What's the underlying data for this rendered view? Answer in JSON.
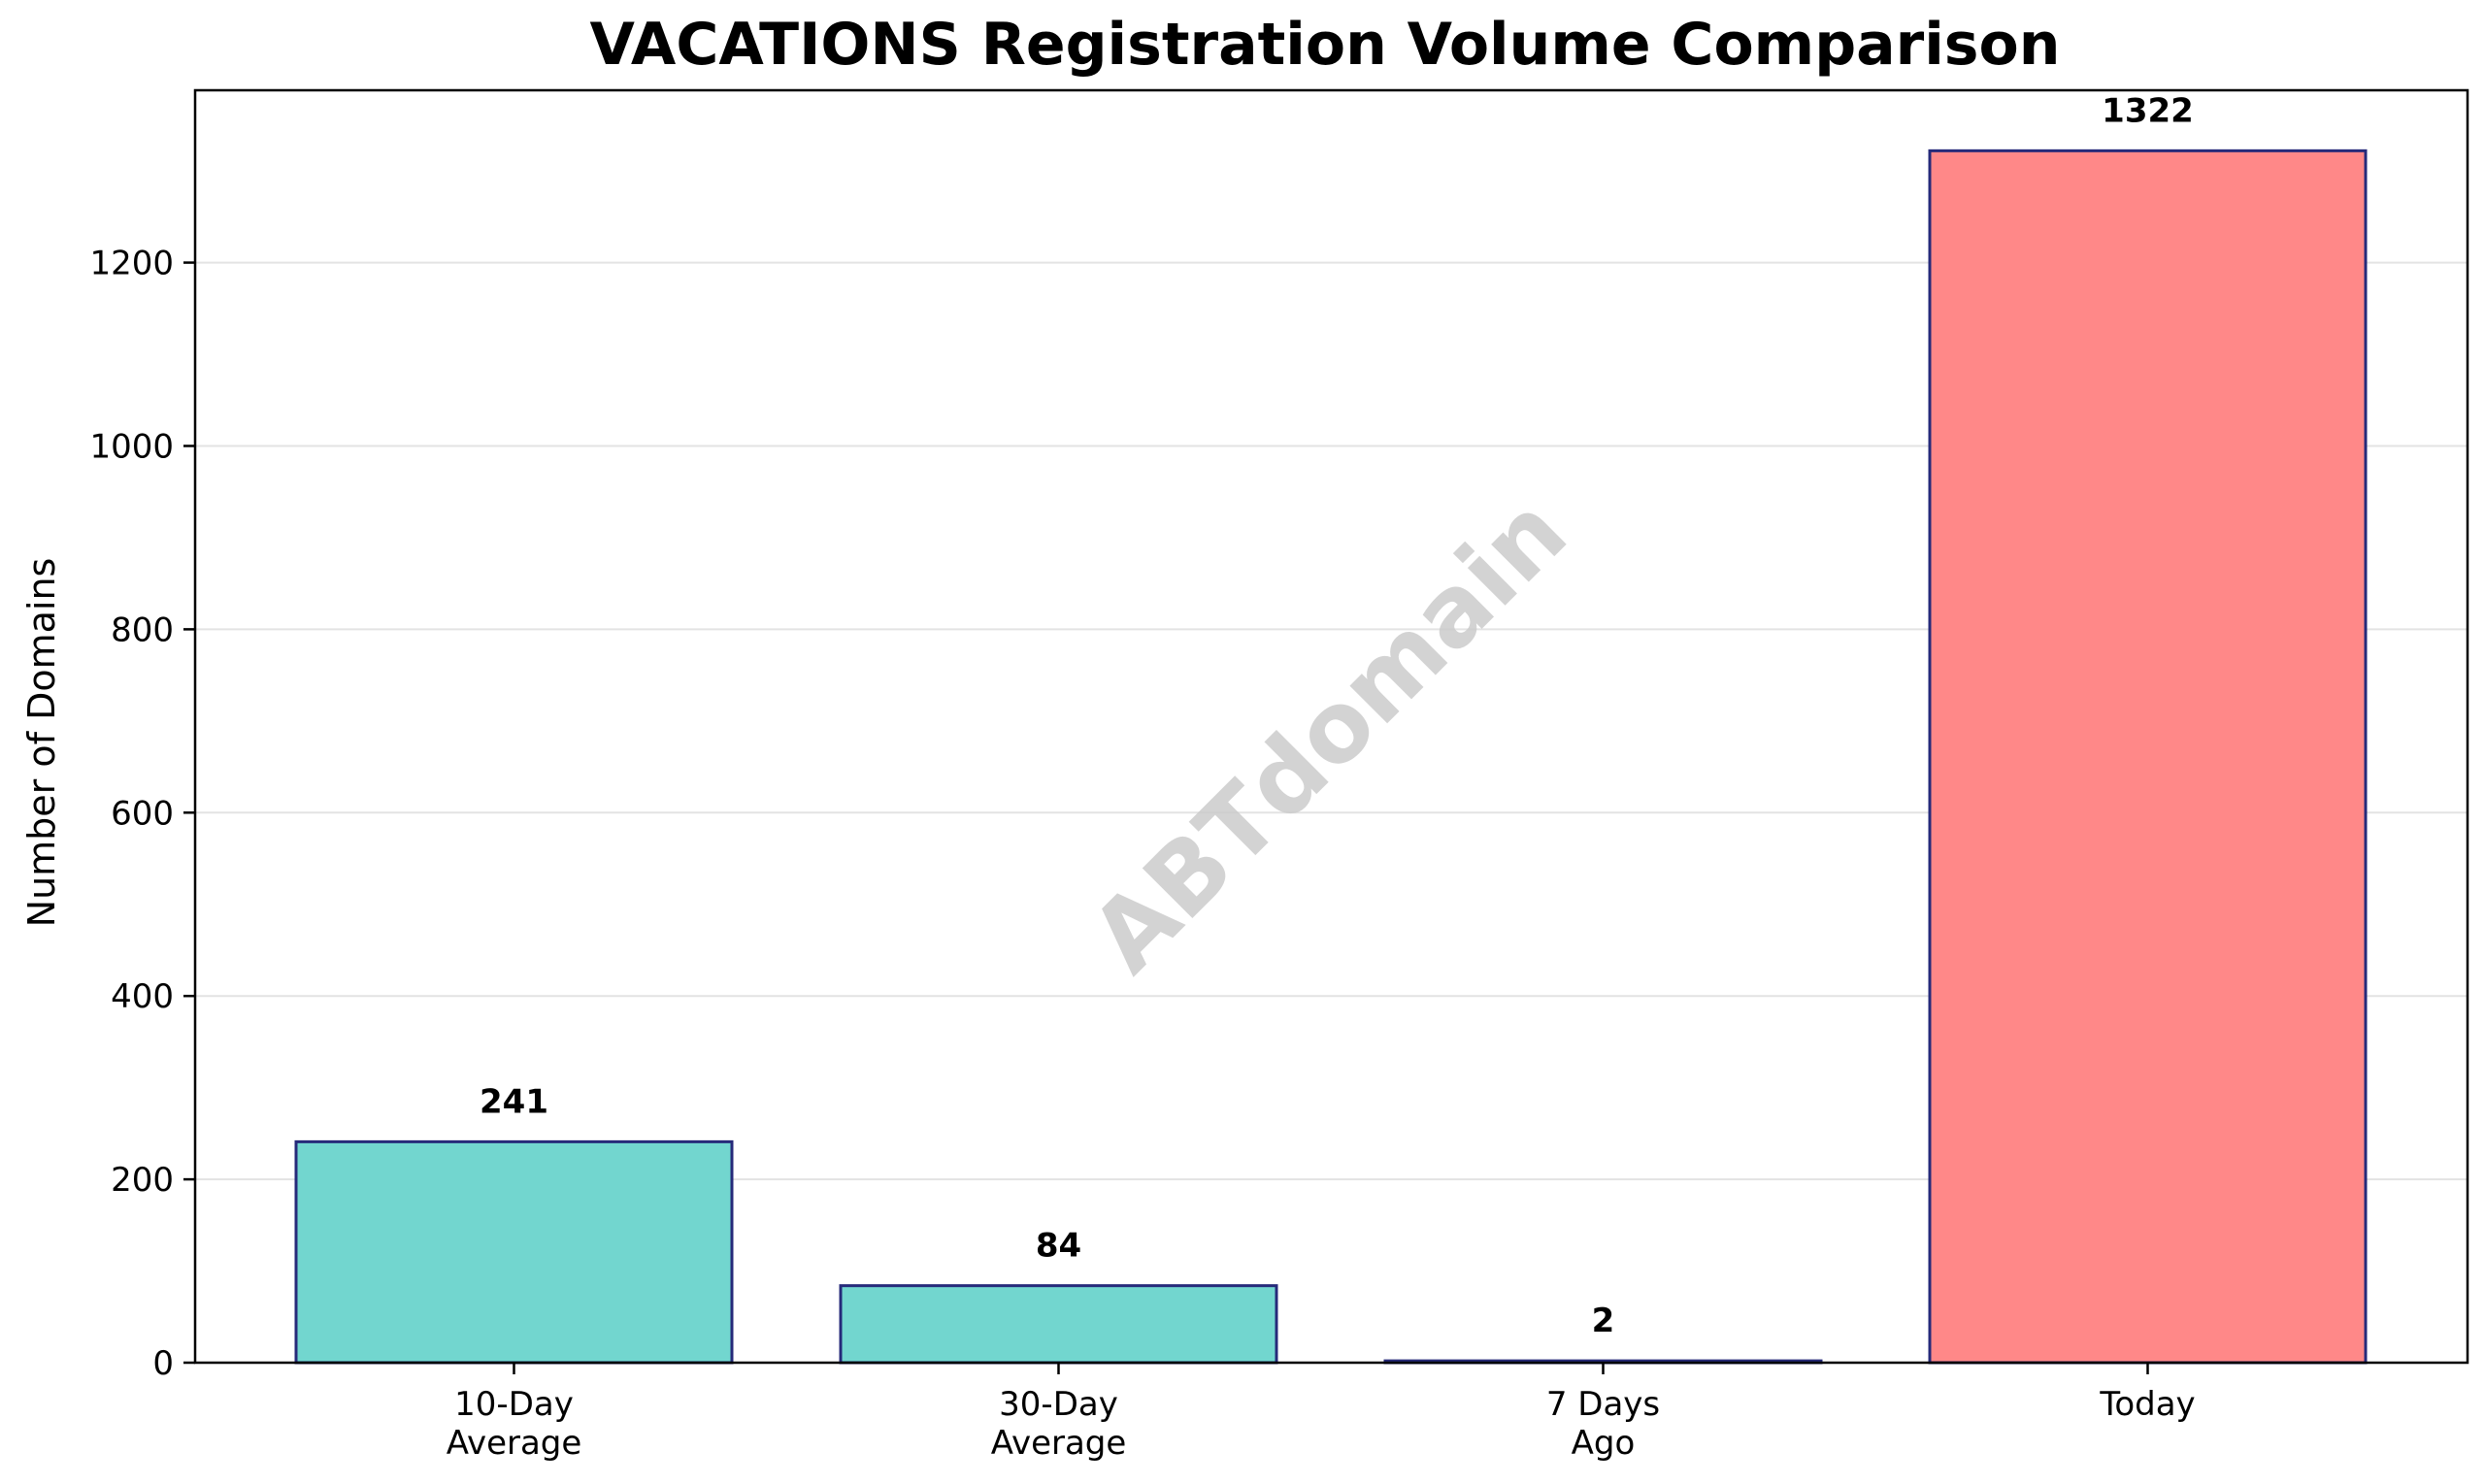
{
  "chart_data": {
    "type": "bar",
    "title": "VACATIONS Registration Volume Comparison",
    "xlabel": "",
    "ylabel": "Number of Domains",
    "categories": [
      [
        "10-Day",
        "Average"
      ],
      [
        "30-Day",
        "Average"
      ],
      [
        "7 Days",
        "Ago"
      ],
      [
        "Today"
      ]
    ],
    "values": [
      241,
      84,
      2,
      1322
    ],
    "data_labels": [
      "241",
      "84",
      "2",
      "1322"
    ],
    "bar_colors": [
      "#72d6cf",
      "#72d6cf",
      "#72d6cf",
      "#ff8888"
    ],
    "bar_edge_color": "#262a7a",
    "ylim": [
      0,
      1388
    ],
    "yticks": [
      0,
      200,
      400,
      600,
      800,
      1000,
      1200
    ],
    "grid": "y",
    "grid_color": "#e3e3e3",
    "watermark": "ABTdomain"
  }
}
